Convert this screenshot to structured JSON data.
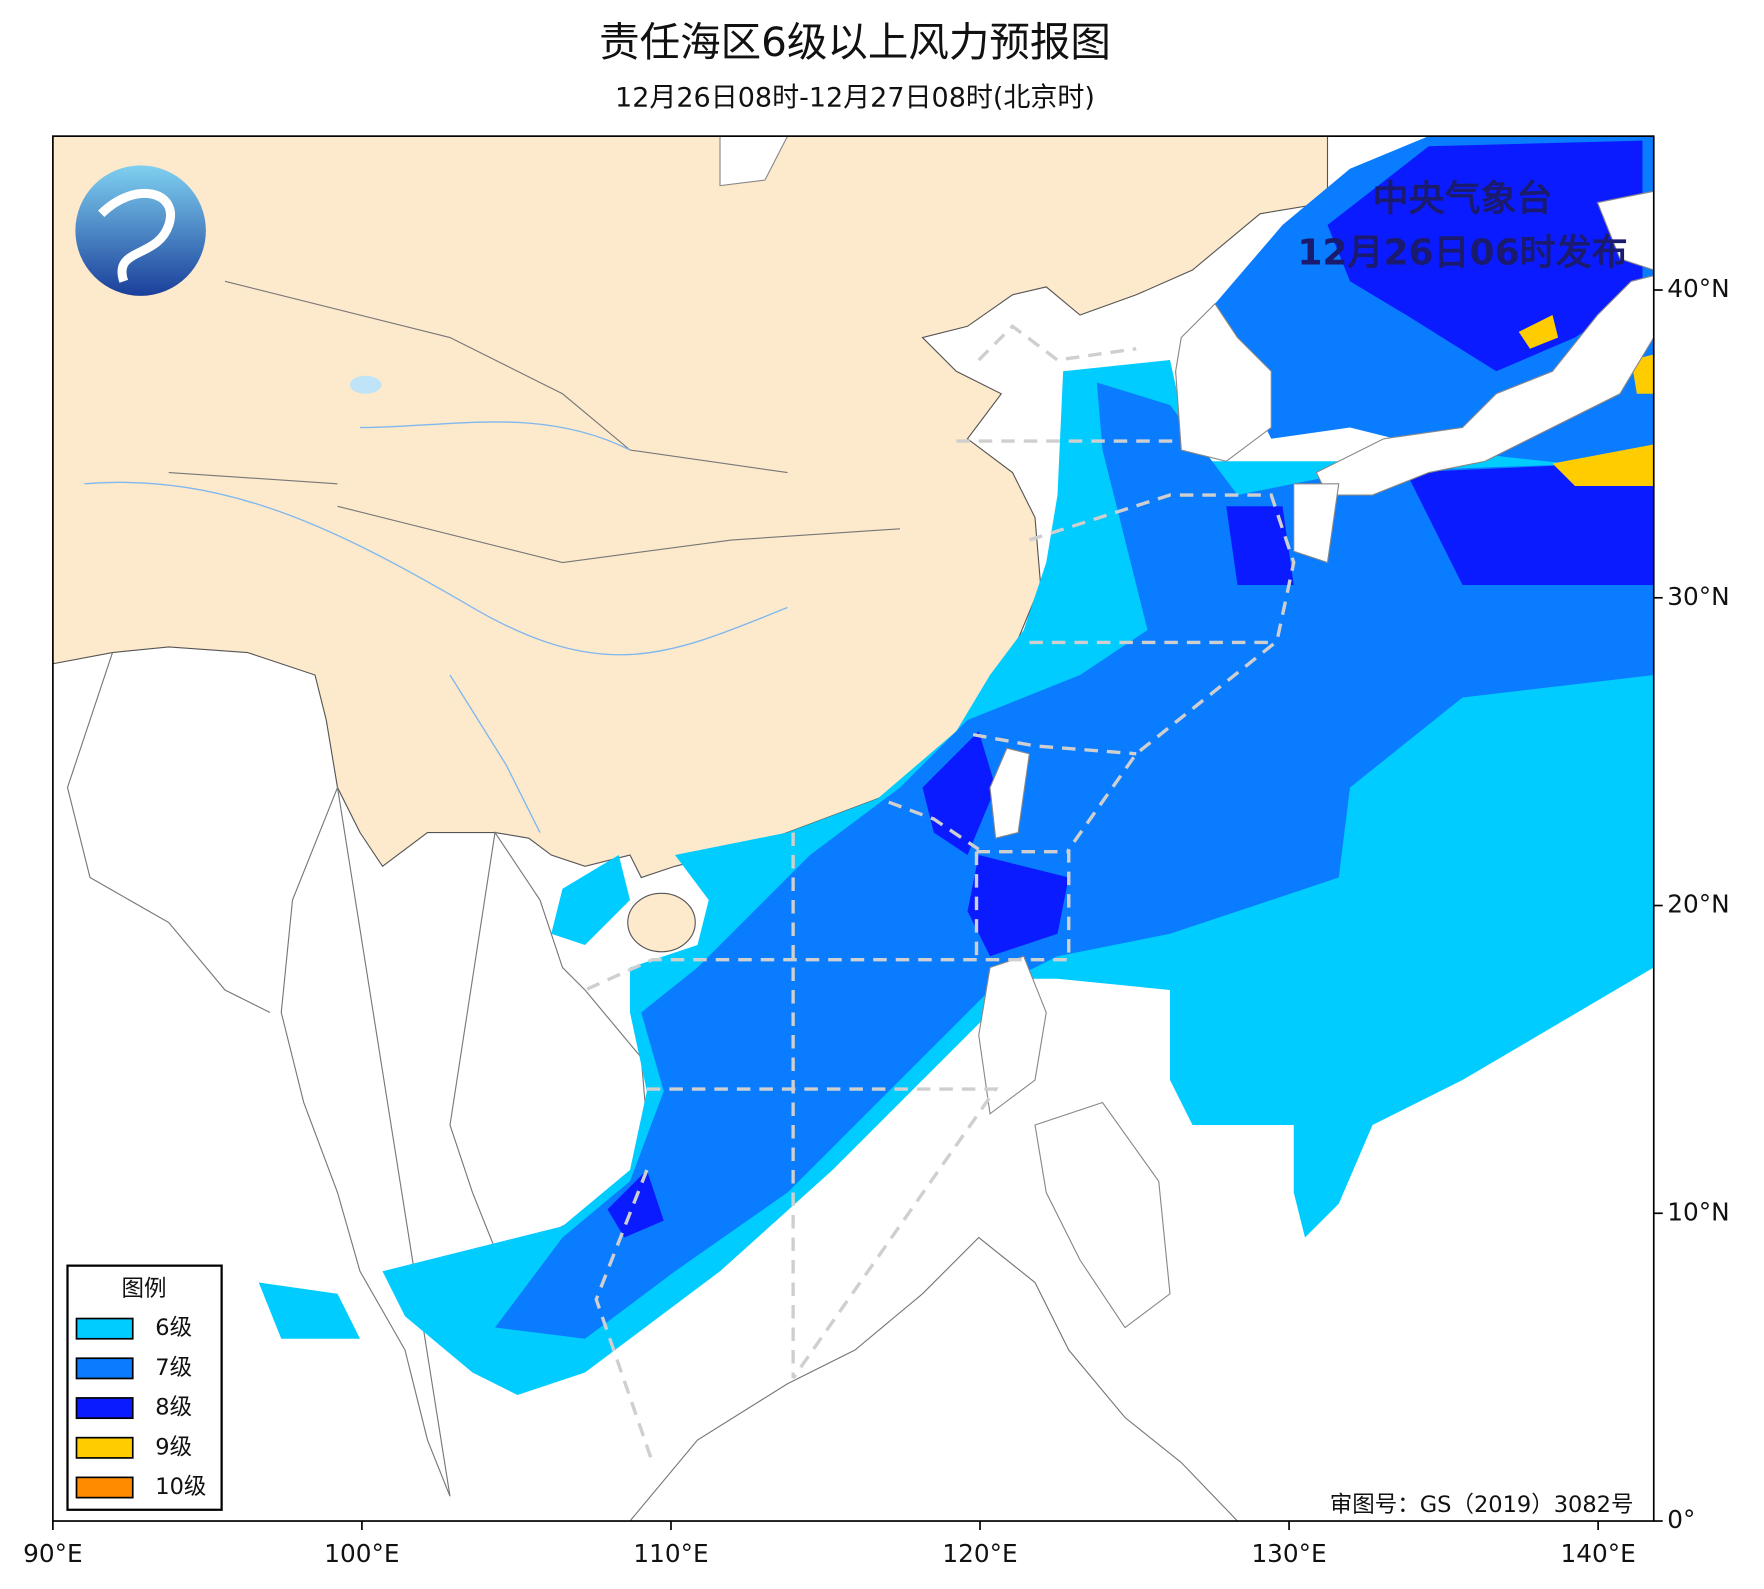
{
  "header": {
    "title": "责任海区6级以上风力预报图",
    "subtitle": "12月26日08时-12月27日08时(北京时)"
  },
  "issuer": {
    "name": "中央气象台",
    "time": "12月26日06时发布"
  },
  "map": {
    "lon_range": [
      90,
      141.8
    ],
    "lat_range": [
      0,
      45
    ],
    "lon_ticks": [
      {
        "value": 90,
        "label": "90°E"
      },
      {
        "value": 100,
        "label": "100°E"
      },
      {
        "value": 110,
        "label": "110°E"
      },
      {
        "value": 120,
        "label": "120°E"
      },
      {
        "value": 130,
        "label": "130°E"
      },
      {
        "value": 140,
        "label": "140°E"
      }
    ],
    "lat_ticks": [
      {
        "value": 0,
        "label": "0°"
      },
      {
        "value": 10,
        "label": "10°N"
      },
      {
        "value": 20,
        "label": "20°N"
      },
      {
        "value": 30,
        "label": "30°N"
      },
      {
        "value": 40,
        "label": "40°N"
      }
    ]
  },
  "legend": {
    "title": "图例",
    "items": [
      {
        "name": "6级",
        "color": "#00ccff"
      },
      {
        "name": "7级",
        "color": "#0a7cff"
      },
      {
        "name": "8级",
        "color": "#0a1cff"
      },
      {
        "name": "9级",
        "color": "#ffcc00"
      },
      {
        "name": "10级",
        "color": "#ff8c00"
      }
    ]
  },
  "footer": {
    "approval": "审图号：GS（2019）3082号"
  }
}
